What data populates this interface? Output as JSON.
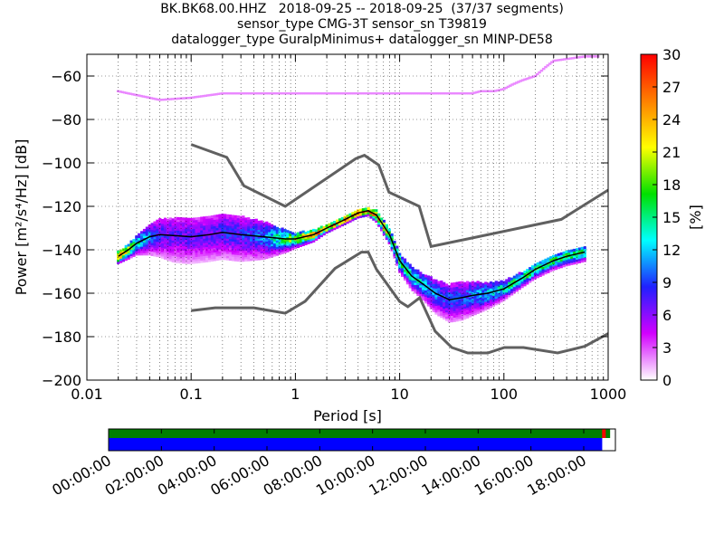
{
  "title_lines": [
    "BK.BK68.00.HHZ   2018-09-25 -- 2018-09-25  (37/37 segments)",
    "sensor_type CMG-3T sensor_sn T39819",
    "datalogger_type GuralpMinimus+ datalogger_sn MINP-DE58"
  ],
  "chart_data": {
    "type": "heatmap",
    "xlabel": "Period [s]",
    "ylabel": "Power [m²/s⁴/Hz] [dB]",
    "x_scale": "log",
    "xlim": [
      0.01,
      1000
    ],
    "ylim": [
      -200,
      -50
    ],
    "x_ticks": [
      0.01,
      0.1,
      1,
      10,
      100,
      1000
    ],
    "x_tick_labels": [
      "0.01",
      "0.1",
      "1",
      "10",
      "100",
      "1000"
    ],
    "y_ticks": [
      -200,
      -180,
      -160,
      -140,
      -120,
      -100,
      -80,
      -60
    ],
    "y_tick_labels": [
      "−200",
      "−180",
      "−160",
      "−140",
      "−120",
      "−100",
      "−80",
      "−60"
    ],
    "grid": true,
    "colorbar": {
      "label": "[%]",
      "range": [
        0,
        30
      ],
      "ticks": [
        0,
        3,
        6,
        9,
        12,
        15,
        18,
        21,
        24,
        27,
        30
      ],
      "colormap": [
        "#ffffff",
        "#d200ff",
        "#2020ff",
        "#00ffff",
        "#00e000",
        "#ffff00",
        "#ff8000",
        "#ff0000"
      ]
    },
    "noise_models": {
      "color": "#606060",
      "nhnm": {
        "period": [
          0.1,
          0.22,
          0.32,
          0.8,
          3.8,
          4.6,
          6.3,
          7.9,
          15.4,
          20,
          354.8,
          1000
        ],
        "power": [
          -91.5,
          -97.4,
          -110.5,
          -120.0,
          -98.0,
          -96.5,
          -101.0,
          -113.5,
          -120.0,
          -138.5,
          -126.0,
          -112.5
        ]
      },
      "nlnm": {
        "period": [
          0.1,
          0.17,
          0.4,
          0.8,
          1.24,
          2.4,
          4.3,
          5.0,
          6.0,
          10.0,
          12.0,
          15.6,
          21.9,
          31.6,
          45.0,
          70.0,
          101.0,
          154.0,
          328.0,
          600.0,
          1000.0
        ],
        "power": [
          -168.0,
          -166.7,
          -166.7,
          -169.2,
          -163.7,
          -148.6,
          -141.1,
          -141.1,
          -149.0,
          -163.8,
          -166.2,
          -162.1,
          -177.5,
          -185.0,
          -187.5,
          -187.5,
          -185.0,
          -185.0,
          -187.5,
          -184.4,
          -178.6
        ]
      }
    },
    "psd_median": {
      "color": "#000000",
      "period": [
        0.02,
        0.025,
        0.03,
        0.04,
        0.05,
        0.07,
        0.1,
        0.15,
        0.2,
        0.3,
        0.5,
        0.8,
        1.0,
        1.5,
        2.0,
        3.0,
        4.0,
        5.0,
        6.0,
        8.0,
        10.0,
        13.0,
        17.0,
        22.0,
        30.0,
        40.0,
        50.0,
        70.0,
        100.0,
        150.0,
        200.0,
        300.0,
        400.0,
        600.0
      ],
      "power": [
        -143,
        -140,
        -137,
        -134,
        -133,
        -133.5,
        -134,
        -133,
        -132,
        -133,
        -134,
        -135,
        -135,
        -133,
        -130,
        -126,
        -123,
        -122,
        -124,
        -133,
        -145,
        -152,
        -156,
        -160,
        -163,
        -162,
        -161,
        -160,
        -158,
        -153,
        -149,
        -145,
        -143,
        -141
      ]
    },
    "psd_histogram": {
      "period": [
        0.02,
        0.025,
        0.03,
        0.04,
        0.05,
        0.07,
        0.1,
        0.15,
        0.2,
        0.3,
        0.5,
        0.8,
        1.0,
        1.5,
        2.0,
        3.0,
        4.0,
        5.0,
        6.0,
        8.0,
        10.0,
        13.0,
        17.0,
        22.0,
        30.0,
        40.0,
        50.0,
        70.0,
        100.0,
        150.0,
        200.0,
        300.0,
        400.0,
        600.0
      ],
      "spread_db": [
        3,
        4,
        5,
        8,
        10,
        12,
        12,
        12,
        12,
        12,
        10,
        6,
        4,
        3,
        2,
        2,
        2,
        2,
        3,
        4,
        5,
        6,
        7,
        9,
        10,
        10,
        9,
        7,
        5,
        4,
        4,
        4,
        4,
        4
      ],
      "peak_percent": [
        28,
        20,
        14,
        10,
        8,
        7,
        7,
        7,
        8,
        8,
        10,
        16,
        20,
        24,
        26,
        28,
        30,
        30,
        26,
        20,
        16,
        14,
        12,
        10,
        9,
        9,
        10,
        12,
        14,
        16,
        16,
        16,
        16,
        16
      ],
      "outlier_band": {
        "period": [
          0.02,
          0.025,
          0.04,
          0.05,
          0.1,
          0.2,
          1,
          10,
          50,
          60,
          80,
          100,
          120,
          150,
          200,
          250,
          300,
          600,
          800
        ],
        "power": [
          -67,
          -68,
          -70,
          -71,
          -70,
          -68,
          -68,
          -68,
          -68,
          -67,
          -67,
          -66,
          -64,
          -62,
          -60,
          -56,
          -53,
          -51,
          -51
        ]
      }
    },
    "timeline": {
      "tick_labels": [
        "00:00:00",
        "02:00:00",
        "04:00:00",
        "06:00:00",
        "08:00:00",
        "10:00:00",
        "12:00:00",
        "14:00:00",
        "16:00:00",
        "18:00:00"
      ],
      "hours_range": [
        0,
        19.2
      ],
      "data_coverage_hours": [
        [
          0,
          19.0
        ]
      ],
      "gaps_coverage_hours": [
        [
          0,
          18.7
        ]
      ],
      "data_color": "#007f00",
      "gap_bar_color": "#0000ff",
      "overlap_marker_color": "#ff0000",
      "overlap_marker_hours": 18.8
    }
  }
}
